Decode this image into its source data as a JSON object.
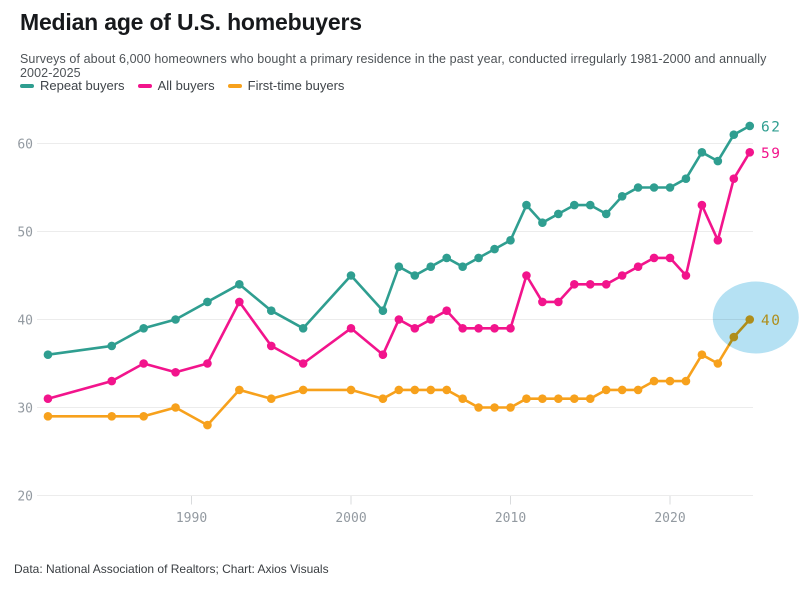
{
  "header": {
    "title": "Median age of U.S. homebuyers",
    "subtitle": "Surveys of about 6,000 homeowners who bought a primary residence in the past year, conducted irregularly 1981-2000 and annually 2002-2025"
  },
  "legend": [
    {
      "label": "Repeat buyers",
      "color": "#2f9e90"
    },
    {
      "label": "All buyers",
      "color": "#f2148c"
    },
    {
      "label": "First-time buyers",
      "color": "#f7a11c"
    }
  ],
  "chart_data": {
    "type": "line",
    "x": [
      1981,
      1985,
      1987,
      1989,
      1991,
      1993,
      1995,
      1997,
      2000,
      2002,
      2003,
      2004,
      2005,
      2006,
      2007,
      2008,
      2009,
      2010,
      2011,
      2012,
      2013,
      2014,
      2015,
      2016,
      2017,
      2018,
      2019,
      2020,
      2021,
      2022,
      2023,
      2024,
      2025
    ],
    "series": [
      {
        "name": "Repeat buyers",
        "color": "#2f9e90",
        "end_label": "62",
        "values": [
          36,
          37,
          39,
          40,
          42,
          44,
          41,
          39,
          45,
          41,
          46,
          45,
          46,
          47,
          46,
          47,
          48,
          49,
          53,
          51,
          52,
          53,
          53,
          52,
          54,
          55,
          55,
          55,
          56,
          59,
          58,
          61,
          62
        ]
      },
      {
        "name": "All buyers",
        "color": "#f2148c",
        "end_label": "59",
        "values": [
          31,
          33,
          35,
          34,
          35,
          42,
          37,
          35,
          39,
          36,
          40,
          39,
          40,
          41,
          39,
          39,
          39,
          39,
          45,
          42,
          42,
          44,
          44,
          44,
          45,
          46,
          47,
          47,
          45,
          53,
          49,
          56,
          59
        ]
      },
      {
        "name": "First-time buyers",
        "color": "#f7a11c",
        "end_label": "40",
        "values": [
          29,
          29,
          29,
          30,
          28,
          32,
          31,
          32,
          32,
          31,
          32,
          32,
          32,
          32,
          31,
          30,
          30,
          30,
          31,
          31,
          31,
          31,
          31,
          32,
          32,
          32,
          33,
          33,
          33,
          36,
          35,
          38,
          40
        ]
      }
    ],
    "yticks": [
      20,
      30,
      40,
      50,
      60
    ],
    "xticks": [
      1990,
      2000,
      2010,
      2020
    ],
    "ylim": [
      20,
      64
    ],
    "xlim": [
      1981,
      2025
    ],
    "grid": "horizontal",
    "legend_position": "top",
    "highlight": {
      "shape": "circle",
      "series": "First-time buyers",
      "year": 2025,
      "color": "#b5e1f3"
    }
  },
  "axis_style": {
    "label_color": "#939aa1",
    "grid_color": "#ececec",
    "tick_color": "#d9dbdd"
  },
  "footer": {
    "credit": "Data: National Association of Realtors; Chart: Axios Visuals"
  }
}
